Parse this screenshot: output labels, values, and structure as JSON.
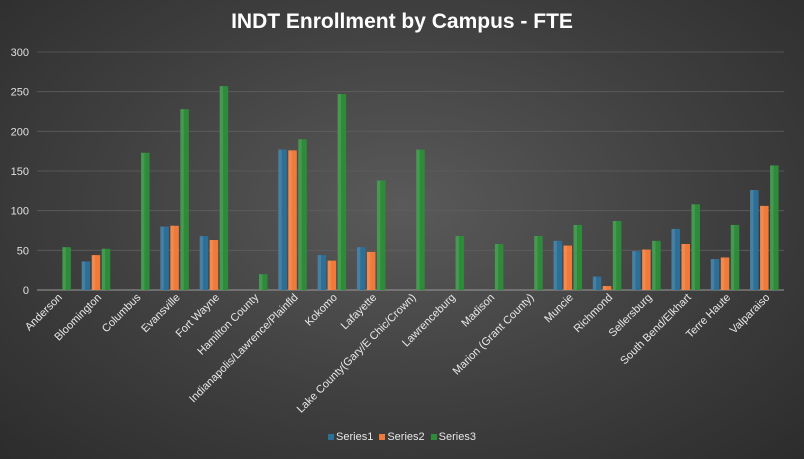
{
  "chart_data": {
    "type": "bar",
    "title": "INDT Enrollment by Campus - FTE",
    "xlabel": "",
    "ylabel": "",
    "ylim": [
      0,
      300
    ],
    "yticks": [
      0,
      50,
      100,
      150,
      200,
      250,
      300
    ],
    "grid": true,
    "legend_position": "bottom",
    "categories": [
      "Anderson",
      "Bloomington",
      "Columbus",
      "Evansville",
      "Fort Wayne",
      "Hamilton County",
      "Indianapolis/Lawrence/Plainfld",
      "Kokomo",
      "Lafayette",
      "Lake County(Gary/E Chic/Crown)",
      "Lawrenceburg",
      "Madison",
      "Marion (Grant County)",
      "Muncie",
      "Richmond",
      "Sellersburg",
      "South Bend/Elkhart",
      "Terre Haute",
      "Valparaiso"
    ],
    "series": [
      {
        "name": "Series1",
        "color": "#2e6f96",
        "values": [
          0,
          36,
          0,
          80,
          68,
          0,
          177,
          44,
          54,
          0,
          0,
          0,
          0,
          62,
          17,
          49,
          77,
          39,
          126
        ]
      },
      {
        "name": "Series2",
        "color": "#f07a3a",
        "values": [
          0,
          44,
          0,
          81,
          63,
          0,
          176,
          37,
          48,
          0,
          0,
          0,
          0,
          56,
          5,
          51,
          58,
          41,
          106
        ]
      },
      {
        "name": "Series3",
        "color": "#2e8b3a",
        "values": [
          54,
          52,
          173,
          228,
          257,
          20,
          190,
          247,
          138,
          177,
          68,
          58,
          68,
          82,
          87,
          62,
          108,
          82,
          157
        ]
      }
    ]
  }
}
